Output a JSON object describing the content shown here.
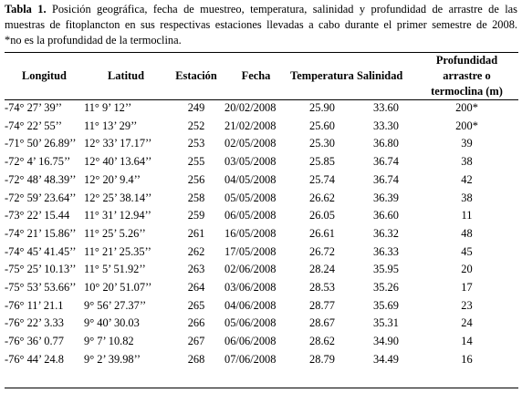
{
  "caption": {
    "label": "Tabla 1.",
    "line1_rest": " Posición geográfica, fecha de muestreo, temperatura, salinidad y profundidad de arrastre de las",
    "line2": "muestras de fitoplancton en sus respectivas estaciones llevadas a cabo durante el primer semestre de 2008.",
    "line3": "*no es la profundidad de la termoclina."
  },
  "table": {
    "headers": {
      "longitud": "Longitud",
      "latitud": "Latitud",
      "estacion": "Estación",
      "fecha": "Fecha",
      "temperatura": "Temperatura",
      "salinidad": "Salinidad",
      "profundidad_l1": "Profundidad",
      "profundidad_l2": "arrastre o",
      "profundidad_l3": "termoclina (m)"
    },
    "rows": [
      {
        "lon": "-74° 27’ 39’’",
        "lat": "11° 9’ 12’’",
        "est": "249",
        "fecha": "20/02/2008",
        "temp": "25.90",
        "sal": "33.60",
        "prof": "200*"
      },
      {
        "lon": "-74° 22’ 55’’",
        "lat": "11° 13’ 29’’",
        "est": "252",
        "fecha": "21/02/2008",
        "temp": "25.60",
        "sal": "33.30",
        "prof": "200*"
      },
      {
        "lon": "-71° 50’ 26.89’’",
        "lat": "12° 33’ 17.17’’",
        "est": "253",
        "fecha": "02/05/2008",
        "temp": "25.30",
        "sal": "36.80",
        "prof": "39"
      },
      {
        "lon": "-72° 4’ 16.75’’",
        "lat": "12° 40’ 13.64’’",
        "est": "255",
        "fecha": "03/05/2008",
        "temp": "25.85",
        "sal": "36.74",
        "prof": "38"
      },
      {
        "lon": "-72° 48’ 48.39’’",
        "lat": "12° 20’ 9.4’’",
        "est": "256",
        "fecha": "04/05/2008",
        "temp": "25.74",
        "sal": "36.74",
        "prof": "42"
      },
      {
        "lon": "-72° 59’ 23.64’’",
        "lat": "12° 25’ 38.14’’",
        "est": "258",
        "fecha": "05/05/2008",
        "temp": "26.62",
        "sal": "36.39",
        "prof": "38"
      },
      {
        "lon": "-73° 22’ 15.44",
        "lat": "11° 31’ 12.94’’",
        "est": "259",
        "fecha": "06/05/2008",
        "temp": "26.05",
        "sal": "36.60",
        "prof": "11"
      },
      {
        "lon": "-74° 21’ 15.86’’",
        "lat": "11° 25’ 5.26’’",
        "est": "261",
        "fecha": "16/05/2008",
        "temp": "26.61",
        "sal": "36.32",
        "prof": "48"
      },
      {
        "lon": "-74° 45’ 41.45’’",
        "lat": "11° 21’ 25.35’’",
        "est": "262",
        "fecha": "17/05/2008",
        "temp": "26.72",
        "sal": "36.33",
        "prof": "45"
      },
      {
        "lon": "-75° 25’ 10.13’’",
        "lat": "11° 5’ 51.92’’",
        "est": "263",
        "fecha": "02/06/2008",
        "temp": "28.24",
        "sal": "35.95",
        "prof": "20"
      },
      {
        "lon": "-75° 53’ 53.66’’",
        "lat": "10° 20’ 51.07’’",
        "est": "264",
        "fecha": "03/06/2008",
        "temp": "28.53",
        "sal": "35.26",
        "prof": "17"
      },
      {
        "lon": "-76° 11’ 21.1",
        "lat": "9° 56’ 27.37’’",
        "est": "265",
        "fecha": "04/06/2008",
        "temp": "28.77",
        "sal": "35.69",
        "prof": "23"
      },
      {
        "lon": "-76° 22’ 3.33",
        "lat": "9° 40’ 30.03",
        "est": "266",
        "fecha": "05/06/2008",
        "temp": "28.67",
        "sal": "35.31",
        "prof": "24"
      },
      {
        "lon": "-76° 36’ 0.77",
        "lat": "9° 7’ 10.82",
        "est": "267",
        "fecha": "06/06/2008",
        "temp": "28.62",
        "sal": "34.90",
        "prof": "14"
      },
      {
        "lon": "-76° 44’ 24.8",
        "lat": "9° 2’ 39.98’’",
        "est": "268",
        "fecha": "07/06/2008",
        "temp": "28.79",
        "sal": "34.49",
        "prof": "16"
      }
    ]
  }
}
